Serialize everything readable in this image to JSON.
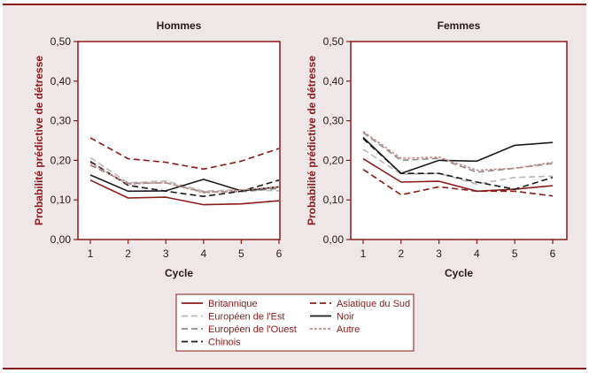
{
  "chart_data": [
    {
      "type": "line",
      "title": "Hommes",
      "xlabel": "Cycle",
      "ylabel": "Probabilité prédictive de détresse",
      "x": [
        1,
        2,
        3,
        4,
        5,
        6
      ],
      "ylim": [
        0,
        0.5
      ],
      "yticks": [
        "0,00",
        "0,10",
        "0,20",
        "0,30",
        "0,40",
        "0,50"
      ],
      "xticks": [
        "1",
        "2",
        "3",
        "4",
        "5",
        "6"
      ],
      "series": [
        {
          "name": "Britannique",
          "values": [
            0.15,
            0.105,
            0.107,
            0.088,
            0.09,
            0.098
          ]
        },
        {
          "name": "Européen de l'Est",
          "values": [
            0.207,
            0.143,
            0.148,
            0.122,
            0.126,
            0.123
          ]
        },
        {
          "name": "Européen de l'Ouest",
          "values": [
            0.188,
            0.142,
            0.143,
            0.12,
            0.121,
            0.129
          ]
        },
        {
          "name": "Chinois",
          "values": [
            0.197,
            0.137,
            0.122,
            0.109,
            0.122,
            0.15
          ]
        },
        {
          "name": "Asiatique du Sud",
          "values": [
            0.257,
            0.204,
            0.195,
            0.178,
            0.198,
            0.23
          ]
        },
        {
          "name": "Noir",
          "values": [
            0.163,
            0.122,
            0.123,
            0.152,
            0.123,
            0.133
          ]
        },
        {
          "name": "Autre",
          "values": [
            0.193,
            0.14,
            0.144,
            0.118,
            0.125,
            0.133
          ]
        }
      ]
    },
    {
      "type": "line",
      "title": "Femmes",
      "xlabel": "Cycle",
      "ylabel": "Probabilité prédictive de détresse",
      "x": [
        1,
        2,
        3,
        4,
        5,
        6
      ],
      "ylim": [
        0,
        0.5
      ],
      "yticks": [
        "0,00",
        "0,10",
        "0,20",
        "0,30",
        "0,40",
        "0,50"
      ],
      "xticks": [
        "1",
        "2",
        "3",
        "4",
        "5",
        "6"
      ],
      "series": [
        {
          "name": "Britannique",
          "values": [
            0.204,
            0.145,
            0.147,
            0.122,
            0.127,
            0.136
          ]
        },
        {
          "name": "Européen de l'Est",
          "values": [
            0.228,
            0.165,
            0.167,
            0.14,
            0.157,
            0.16
          ]
        },
        {
          "name": "Européen de l'Ouest",
          "values": [
            0.27,
            0.2,
            0.205,
            0.17,
            0.18,
            0.192
          ]
        },
        {
          "name": "Chinois",
          "values": [
            0.255,
            0.167,
            0.167,
            0.145,
            0.127,
            0.157
          ]
        },
        {
          "name": "Asiatique du Sud",
          "values": [
            0.177,
            0.113,
            0.133,
            0.122,
            0.122,
            0.11
          ]
        },
        {
          "name": "Noir",
          "values": [
            0.258,
            0.167,
            0.2,
            0.198,
            0.238,
            0.245
          ]
        },
        {
          "name": "Autre",
          "values": [
            0.273,
            0.205,
            0.208,
            0.175,
            0.18,
            0.195
          ]
        }
      ]
    }
  ],
  "legend": {
    "entries": [
      {
        "label": "Britannique",
        "color": "#8b1a1a",
        "dash": "solid"
      },
      {
        "label": "Asiatique du Sud",
        "color": "#8b1a1a",
        "dash": "dashed"
      },
      {
        "label": "Européen de l'Est",
        "color": "#b8b8b8",
        "dash": "dashed"
      },
      {
        "label": "Noir",
        "color": "#1a1a1a",
        "dash": "solid"
      },
      {
        "label": "Européen de l'Ouest",
        "color": "#8a8a8a",
        "dash": "dashed"
      },
      {
        "label": "Autre",
        "color": "#c98a8a",
        "dash": "dotted"
      },
      {
        "label": "Chinois",
        "color": "#1a1a1a",
        "dash": "dashed"
      }
    ]
  },
  "colors": {
    "accent": "#8b1a1a",
    "background": "#efe7e7",
    "plot_background": "#ffffff"
  }
}
